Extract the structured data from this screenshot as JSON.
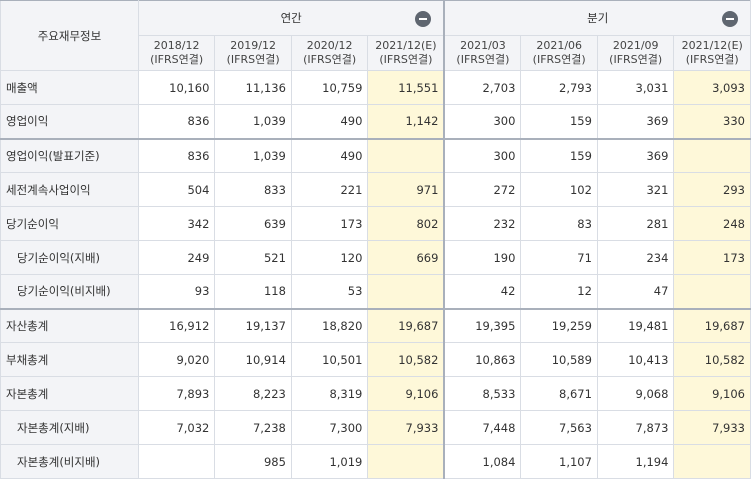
{
  "corner_label": "주요재무정보",
  "groups": [
    {
      "label": "연간",
      "collapse_icon": "minus-circle-icon"
    },
    {
      "label": "분기",
      "collapse_icon": "minus-circle-icon"
    }
  ],
  "columns": [
    {
      "period": "2018/12",
      "basis": "(IFRS연결)"
    },
    {
      "period": "2019/12",
      "basis": "(IFRS연결)"
    },
    {
      "period": "2020/12",
      "basis": "(IFRS연결)"
    },
    {
      "period": "2021/12(E)",
      "basis": "(IFRS연결)"
    },
    {
      "period": "2021/03",
      "basis": "(IFRS연결)"
    },
    {
      "period": "2021/06",
      "basis": "(IFRS연결)"
    },
    {
      "period": "2021/09",
      "basis": "(IFRS연결)"
    },
    {
      "period": "2021/12(E)",
      "basis": "(IFRS연결)"
    }
  ],
  "rows": [
    {
      "label": "매출액",
      "values": [
        "10,160",
        "11,136",
        "10,759",
        "11,551",
        "2,703",
        "2,793",
        "3,031",
        "3,093"
      ]
    },
    {
      "label": "영업이익",
      "values": [
        "836",
        "1,039",
        "490",
        "1,142",
        "300",
        "159",
        "369",
        "330"
      ]
    },
    {
      "label": "영업이익(발표기준)",
      "values": [
        "836",
        "1,039",
        "490",
        "",
        "300",
        "159",
        "369",
        ""
      ]
    },
    {
      "label": "세전계속사업이익",
      "values": [
        "504",
        "833",
        "221",
        "971",
        "272",
        "102",
        "321",
        "293"
      ]
    },
    {
      "label": "당기순이익",
      "values": [
        "342",
        "639",
        "173",
        "802",
        "232",
        "83",
        "281",
        "248"
      ]
    },
    {
      "label": "당기순이익(지배)",
      "values": [
        "249",
        "521",
        "120",
        "669",
        "190",
        "71",
        "234",
        "173"
      ]
    },
    {
      "label": "당기순이익(비지배)",
      "values": [
        "93",
        "118",
        "53",
        "",
        "42",
        "12",
        "47",
        ""
      ]
    },
    {
      "label": "자산총계",
      "values": [
        "16,912",
        "19,137",
        "18,820",
        "19,687",
        "19,395",
        "19,259",
        "19,481",
        "19,687"
      ]
    },
    {
      "label": "부채총계",
      "values": [
        "9,020",
        "10,914",
        "10,501",
        "10,582",
        "10,863",
        "10,589",
        "10,413",
        "10,582"
      ]
    },
    {
      "label": "자본총계",
      "values": [
        "7,893",
        "8,223",
        "8,319",
        "9,106",
        "8,533",
        "8,671",
        "9,068",
        "9,106"
      ]
    },
    {
      "label": "자본총계(지배)",
      "values": [
        "7,032",
        "7,238",
        "7,300",
        "7,933",
        "7,448",
        "7,563",
        "7,873",
        "7,933"
      ]
    },
    {
      "label": "자본총계(비지배)",
      "values": [
        "",
        "985",
        "1,019",
        "",
        "1,084",
        "1,107",
        "1,194",
        ""
      ]
    }
  ]
}
